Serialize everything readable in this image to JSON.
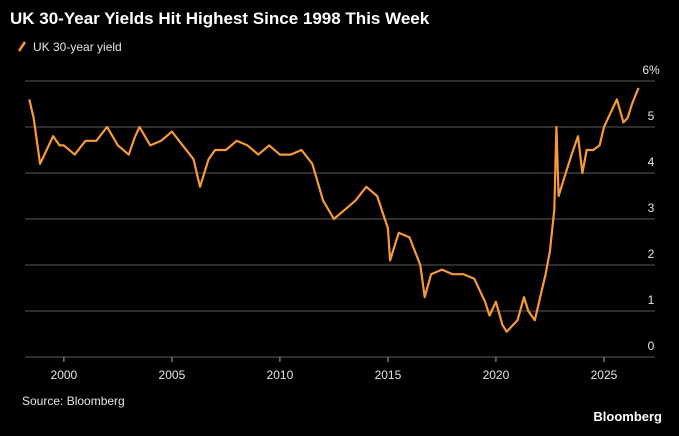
{
  "chart_data": {
    "type": "line",
    "title": "UK 30-Year Yields Hit Highest Since 1998 This Week",
    "source": "Source: Bloomberg",
    "brand": "Bloomberg",
    "x": [
      1998.4,
      1998.6,
      1998.9,
      1999.2,
      1999.5,
      1999.8,
      2000.0,
      2000.5,
      2001.0,
      2001.5,
      2002.0,
      2002.5,
      2003.0,
      2003.3,
      2003.5,
      2004.0,
      2004.5,
      2005.0,
      2005.5,
      2006.0,
      2006.3,
      2006.7,
      2007.0,
      2007.5,
      2008.0,
      2008.5,
      2009.0,
      2009.5,
      2010.0,
      2010.5,
      2011.0,
      2011.5,
      2012.0,
      2012.5,
      2013.0,
      2013.5,
      2014.0,
      2014.5,
      2015.0,
      2015.1,
      2015.5,
      2016.0,
      2016.5,
      2016.7,
      2017.0,
      2017.5,
      2018.0,
      2018.5,
      2019.0,
      2019.5,
      2019.7,
      2020.0,
      2020.3,
      2020.5,
      2021.0,
      2021.3,
      2021.5,
      2021.8,
      2022.0,
      2022.3,
      2022.5,
      2022.7,
      2022.8,
      2022.9,
      2023.1,
      2023.3,
      2023.5,
      2023.8,
      2024.0,
      2024.2,
      2024.5,
      2024.8,
      2025.0,
      2025.3,
      2025.6,
      2025.9,
      2026.1,
      2026.3,
      2026.6
    ],
    "series": [
      {
        "name": "UK 30-year yield",
        "color": "#f7993a",
        "values": [
          5.6,
          5.2,
          4.2,
          4.5,
          4.8,
          4.6,
          4.6,
          4.4,
          4.7,
          4.7,
          5.0,
          4.6,
          4.4,
          4.8,
          5.0,
          4.6,
          4.7,
          4.9,
          4.6,
          4.3,
          3.7,
          4.3,
          4.5,
          4.5,
          4.7,
          4.6,
          4.4,
          4.6,
          4.4,
          4.4,
          4.5,
          4.2,
          3.4,
          3.0,
          3.2,
          3.4,
          3.7,
          3.5,
          2.8,
          2.1,
          2.7,
          2.6,
          2.0,
          1.3,
          1.8,
          1.9,
          1.8,
          1.8,
          1.7,
          1.2,
          0.9,
          1.2,
          0.7,
          0.55,
          0.8,
          1.3,
          1.0,
          0.8,
          1.2,
          1.8,
          2.3,
          3.2,
          5.0,
          3.5,
          3.8,
          4.1,
          4.4,
          4.8,
          4.0,
          4.5,
          4.5,
          4.6,
          5.0,
          5.3,
          5.6,
          5.1,
          5.2,
          5.5,
          5.85
        ]
      }
    ],
    "xlim": [
      1998.2,
      2026.9
    ],
    "xticks": [
      2000,
      2005,
      2010,
      2015,
      2020,
      2025
    ],
    "ylim": [
      0,
      6
    ],
    "yticks": [
      0,
      1,
      2,
      3,
      4,
      5,
      {
        "value": 6,
        "label": "6%"
      }
    ],
    "grid": true
  }
}
